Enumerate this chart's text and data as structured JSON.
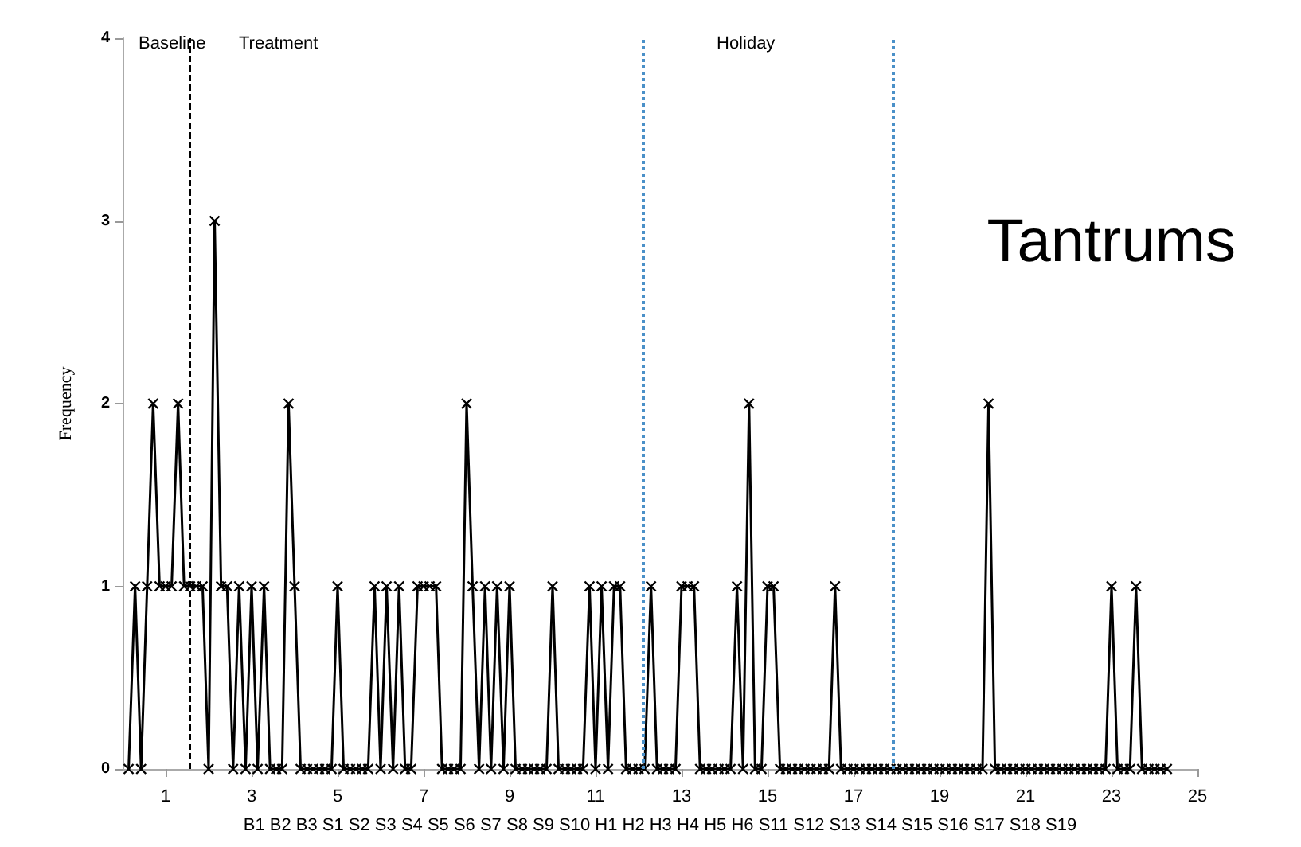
{
  "chart_data": {
    "type": "line",
    "title": "Tantrums",
    "ylabel": "Frequency",
    "xlabel": "B1 B2 B3 S1 S2 S3 S4 S5 S6 S7 S8 S9 S10 H1 H2 H3 H4 H5 H6 S11 S12 S13 S14 S15 S16 S17 S18 S19",
    "annotations": [
      "Baseline",
      "Treatment",
      "Holiday"
    ],
    "xlim": [
      0,
      25
    ],
    "xticks": [
      1,
      3,
      5,
      7,
      9,
      11,
      13,
      15,
      17,
      19,
      21,
      23,
      25
    ],
    "ylim": [
      0,
      4
    ],
    "yticks": [
      0,
      1,
      2,
      3,
      4
    ],
    "grid": false,
    "marker": "cross",
    "line_style": "solid",
    "ref_lines": [
      {
        "axis": "x",
        "value": 1.55,
        "color": "#000000",
        "line_style": "dashed"
      },
      {
        "axis": "x",
        "value": 12.1,
        "color": "#4a90c8",
        "line_style": "dotted"
      },
      {
        "axis": "x",
        "value": 17.9,
        "color": "#4a90c8",
        "line_style": "dotted"
      }
    ],
    "series": [
      {
        "color": "#000000",
        "x": [
          0.14,
          0.29,
          0.43,
          0.57,
          0.71,
          0.86,
          1,
          1.14,
          1.29,
          1.43,
          1.57,
          1.71,
          1.86,
          2,
          2.14,
          2.29,
          2.43,
          2.57,
          2.71,
          2.86,
          3,
          3.14,
          3.29,
          3.43,
          3.57,
          3.71,
          3.86,
          4,
          4.14,
          4.29,
          4.43,
          4.57,
          4.71,
          4.86,
          5,
          5.14,
          5.29,
          5.43,
          5.57,
          5.71,
          5.86,
          6,
          6.14,
          6.29,
          6.43,
          6.57,
          6.71,
          6.86,
          7,
          7.14,
          7.29,
          7.43,
          7.57,
          7.71,
          7.86,
          8,
          8.14,
          8.29,
          8.43,
          8.57,
          8.71,
          8.86,
          9,
          9.14,
          9.29,
          9.43,
          9.57,
          9.71,
          9.86,
          10,
          10.14,
          10.29,
          10.43,
          10.57,
          10.71,
          10.86,
          11,
          11.14,
          11.29,
          11.43,
          11.57,
          11.71,
          11.86,
          12,
          12.14,
          12.29,
          12.43,
          12.57,
          12.71,
          12.86,
          13,
          13.14,
          13.29,
          13.43,
          13.57,
          13.71,
          13.86,
          14,
          14.14,
          14.29,
          14.43,
          14.57,
          14.71,
          14.86,
          15,
          15.14,
          15.29,
          15.43,
          15.57,
          15.71,
          15.86,
          16,
          16.14,
          16.29,
          16.43,
          16.57,
          16.71,
          16.86,
          17,
          17.14,
          17.29,
          17.43,
          17.57,
          17.71,
          17.86,
          18,
          18.14,
          18.29,
          18.43,
          18.57,
          18.71,
          18.86,
          19,
          19.14,
          19.29,
          19.43,
          19.57,
          19.71,
          19.86,
          20,
          20.14,
          20.29,
          20.43,
          20.57,
          20.71,
          20.86,
          21,
          21.14,
          21.29,
          21.43,
          21.57,
          21.71,
          21.86,
          22,
          22.14,
          22.29,
          22.43,
          22.57,
          22.71,
          22.86,
          23,
          23.14,
          23.29,
          23.43,
          23.57,
          23.71,
          23.86,
          24,
          24.14,
          24.29
        ],
        "values": [
          0,
          1,
          0,
          1,
          2,
          1,
          1,
          1,
          2,
          1,
          1,
          1,
          1,
          0,
          3,
          1,
          1,
          0,
          1,
          0,
          1,
          0,
          1,
          0,
          0,
          0,
          2,
          1,
          0,
          0,
          0,
          0,
          0,
          0,
          1,
          0,
          0,
          0,
          0,
          0,
          1,
          0,
          1,
          0,
          1,
          0,
          0,
          1,
          1,
          1,
          1,
          0,
          0,
          0,
          0,
          2,
          1,
          0,
          1,
          0,
          1,
          0,
          1,
          0,
          0,
          0,
          0,
          0,
          0,
          1,
          0,
          0,
          0,
          0,
          0,
          1,
          0,
          1,
          0,
          1,
          1,
          0,
          0,
          0,
          0,
          1,
          0,
          0,
          0,
          0,
          1,
          1,
          1,
          0,
          0,
          0,
          0,
          0,
          0,
          1,
          0,
          2,
          0,
          0,
          1,
          1,
          0,
          0,
          0,
          0,
          0,
          0,
          0,
          0,
          0,
          1,
          0,
          0,
          0,
          0,
          0,
          0,
          0,
          0,
          0,
          0,
          0,
          0,
          0,
          0,
          0,
          0,
          0,
          0,
          0,
          0,
          0,
          0,
          0,
          0,
          2,
          0,
          0,
          0,
          0,
          0,
          0,
          0,
          0,
          0,
          0,
          0,
          0,
          0,
          0,
          0,
          0,
          0,
          0,
          0,
          1,
          0,
          0,
          0,
          1,
          0,
          0,
          0,
          0,
          0
        ]
      }
    ]
  }
}
